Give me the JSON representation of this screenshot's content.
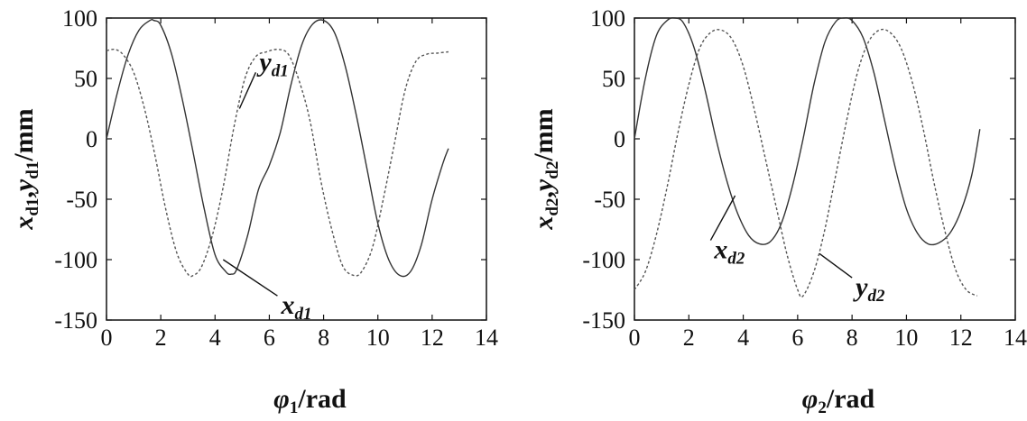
{
  "chart_data": [
    {
      "type": "line",
      "xlim": [
        0,
        14
      ],
      "ylim": [
        -150,
        100
      ],
      "xticks": [
        "0",
        "2",
        "4",
        "6",
        "8",
        "10",
        "12",
        "14"
      ],
      "yticks": [
        "100",
        "50",
        "0",
        "-50",
        "-100",
        "-150"
      ],
      "xticks_values": [
        0,
        2,
        4,
        6,
        8,
        10,
        12,
        14
      ],
      "yticks_values": [
        100,
        50,
        0,
        -50,
        -100,
        -150
      ],
      "xlabel": {
        "main": "φ",
        "sub": "1",
        "rest": "/rad"
      },
      "ylabel": {
        "x": "x",
        "xsub": "d1",
        "sep": ",",
        "y": "y",
        "ysub": "d1",
        "unit": "/mm"
      },
      "grid": false,
      "series": [
        {
          "name": "xd1",
          "label": {
            "main": "x",
            "sub": "d1"
          },
          "style": "solid",
          "x": [
            0,
            0.4,
            0.8,
            1.2,
            1.6,
            1.75,
            2.0,
            2.4,
            2.8,
            3.2,
            3.6,
            4.0,
            4.4,
            4.6,
            4.8,
            5.2,
            5.6,
            6.0,
            6.4,
            6.8,
            7.2,
            7.6,
            8.0,
            8.4,
            8.8,
            9.2,
            9.6,
            10.0,
            10.4,
            10.8,
            11.2,
            11.6,
            12.0,
            12.4,
            12.6
          ],
          "y": [
            0,
            38,
            70,
            90,
            98,
            98,
            94,
            70,
            32,
            -12,
            -58,
            -96,
            -110,
            -112,
            -108,
            -80,
            -42,
            -22,
            5,
            45,
            78,
            95,
            98,
            88,
            60,
            20,
            -25,
            -70,
            -100,
            -113,
            -110,
            -88,
            -50,
            -20,
            -8
          ]
        },
        {
          "name": "yd1",
          "label": {
            "main": "y",
            "sub": "d1"
          },
          "style": "dashed",
          "x": [
            0,
            0.3,
            0.6,
            1.0,
            1.4,
            1.8,
            2.2,
            2.6,
            3.0,
            3.2,
            3.5,
            3.9,
            4.3,
            4.7,
            5.1,
            5.5,
            5.9,
            6.3,
            6.7,
            7.1,
            7.5,
            7.9,
            8.3,
            8.7,
            9.1,
            9.4,
            9.8,
            10.2,
            10.6,
            11.0,
            11.4,
            11.8,
            12.2,
            12.6
          ],
          "y": [
            73,
            74,
            70,
            55,
            25,
            -15,
            -60,
            -95,
            -112,
            -113,
            -106,
            -80,
            -40,
            10,
            50,
            68,
            72,
            74,
            70,
            48,
            15,
            -35,
            -75,
            -105,
            -113,
            -110,
            -90,
            -50,
            -5,
            40,
            64,
            70,
            71,
            72
          ]
        }
      ],
      "annotations": [
        {
          "target": "yd1",
          "text": {
            "main": "y",
            "sub": "d1"
          },
          "at": [
            4.9,
            25
          ],
          "point_to": [
            5.5,
            55
          ]
        },
        {
          "target": "xd1",
          "text": {
            "main": "x",
            "sub": "d1"
          },
          "at": [
            4.3,
            -100
          ],
          "point_to": [
            6.3,
            -130
          ]
        }
      ]
    },
    {
      "type": "line",
      "xlim": [
        0,
        14
      ],
      "ylim": [
        -150,
        100
      ],
      "xticks": [
        "0",
        "2",
        "4",
        "6",
        "8",
        "10",
        "12",
        "14"
      ],
      "yticks": [
        "100",
        "50",
        "0",
        "-50",
        "-100",
        "-150"
      ],
      "xticks_values": [
        0,
        2,
        4,
        6,
        8,
        10,
        12,
        14
      ],
      "yticks_values": [
        100,
        50,
        0,
        -50,
        -100,
        -150
      ],
      "xlabel": {
        "main": "φ",
        "sub": "2",
        "rest": "/rad"
      },
      "ylabel": {
        "x": "x",
        "xsub": "d2",
        "sep": ",",
        "y": "y",
        "ysub": "d2",
        "unit": "/mm"
      },
      "grid": false,
      "series": [
        {
          "name": "xd2",
          "label": {
            "main": "x",
            "sub": "d2"
          },
          "style": "solid",
          "x": [
            0,
            0.4,
            0.8,
            1.2,
            1.5,
            1.8,
            2.2,
            2.6,
            3.0,
            3.4,
            3.8,
            4.2,
            4.6,
            5.0,
            5.4,
            5.8,
            6.2,
            6.6,
            7.0,
            7.4,
            7.7,
            8.0,
            8.4,
            8.8,
            9.2,
            9.6,
            10.0,
            10.4,
            10.8,
            11.2,
            11.6,
            12.0,
            12.4,
            12.7
          ],
          "y": [
            0,
            50,
            85,
            98,
            100,
            96,
            75,
            40,
            0,
            -35,
            -62,
            -80,
            -87,
            -85,
            -70,
            -40,
            0,
            45,
            80,
            97,
            100,
            98,
            84,
            55,
            15,
            -25,
            -58,
            -78,
            -87,
            -86,
            -78,
            -60,
            -30,
            8
          ]
        },
        {
          "name": "yd2",
          "label": {
            "main": "y",
            "sub": "d2"
          },
          "style": "dashed",
          "x": [
            0,
            0.4,
            0.8,
            1.2,
            1.6,
            2.0,
            2.4,
            2.8,
            3.2,
            3.6,
            4.0,
            4.4,
            4.8,
            5.2,
            5.6,
            6.0,
            6.2,
            6.6,
            7.0,
            7.4,
            7.8,
            8.2,
            8.6,
            9.0,
            9.4,
            9.8,
            10.2,
            10.6,
            11.0,
            11.4,
            11.8,
            12.2,
            12.6
          ],
          "y": [
            -125,
            -110,
            -80,
            -40,
            5,
            45,
            75,
            88,
            90,
            82,
            60,
            25,
            -15,
            -55,
            -95,
            -125,
            -130,
            -110,
            -75,
            -30,
            15,
            55,
            80,
            90,
            88,
            75,
            48,
            10,
            -35,
            -75,
            -108,
            -125,
            -130
          ]
        }
      ],
      "annotations": [
        {
          "target": "xd2",
          "text": {
            "main": "x",
            "sub": "d2"
          },
          "at": [
            3.7,
            -47
          ],
          "point_to": [
            2.8,
            -84
          ]
        },
        {
          "target": "yd2",
          "text": {
            "main": "y",
            "sub": "d2"
          },
          "at": [
            6.8,
            -95
          ],
          "point_to": [
            8.0,
            -115
          ]
        }
      ]
    }
  ]
}
